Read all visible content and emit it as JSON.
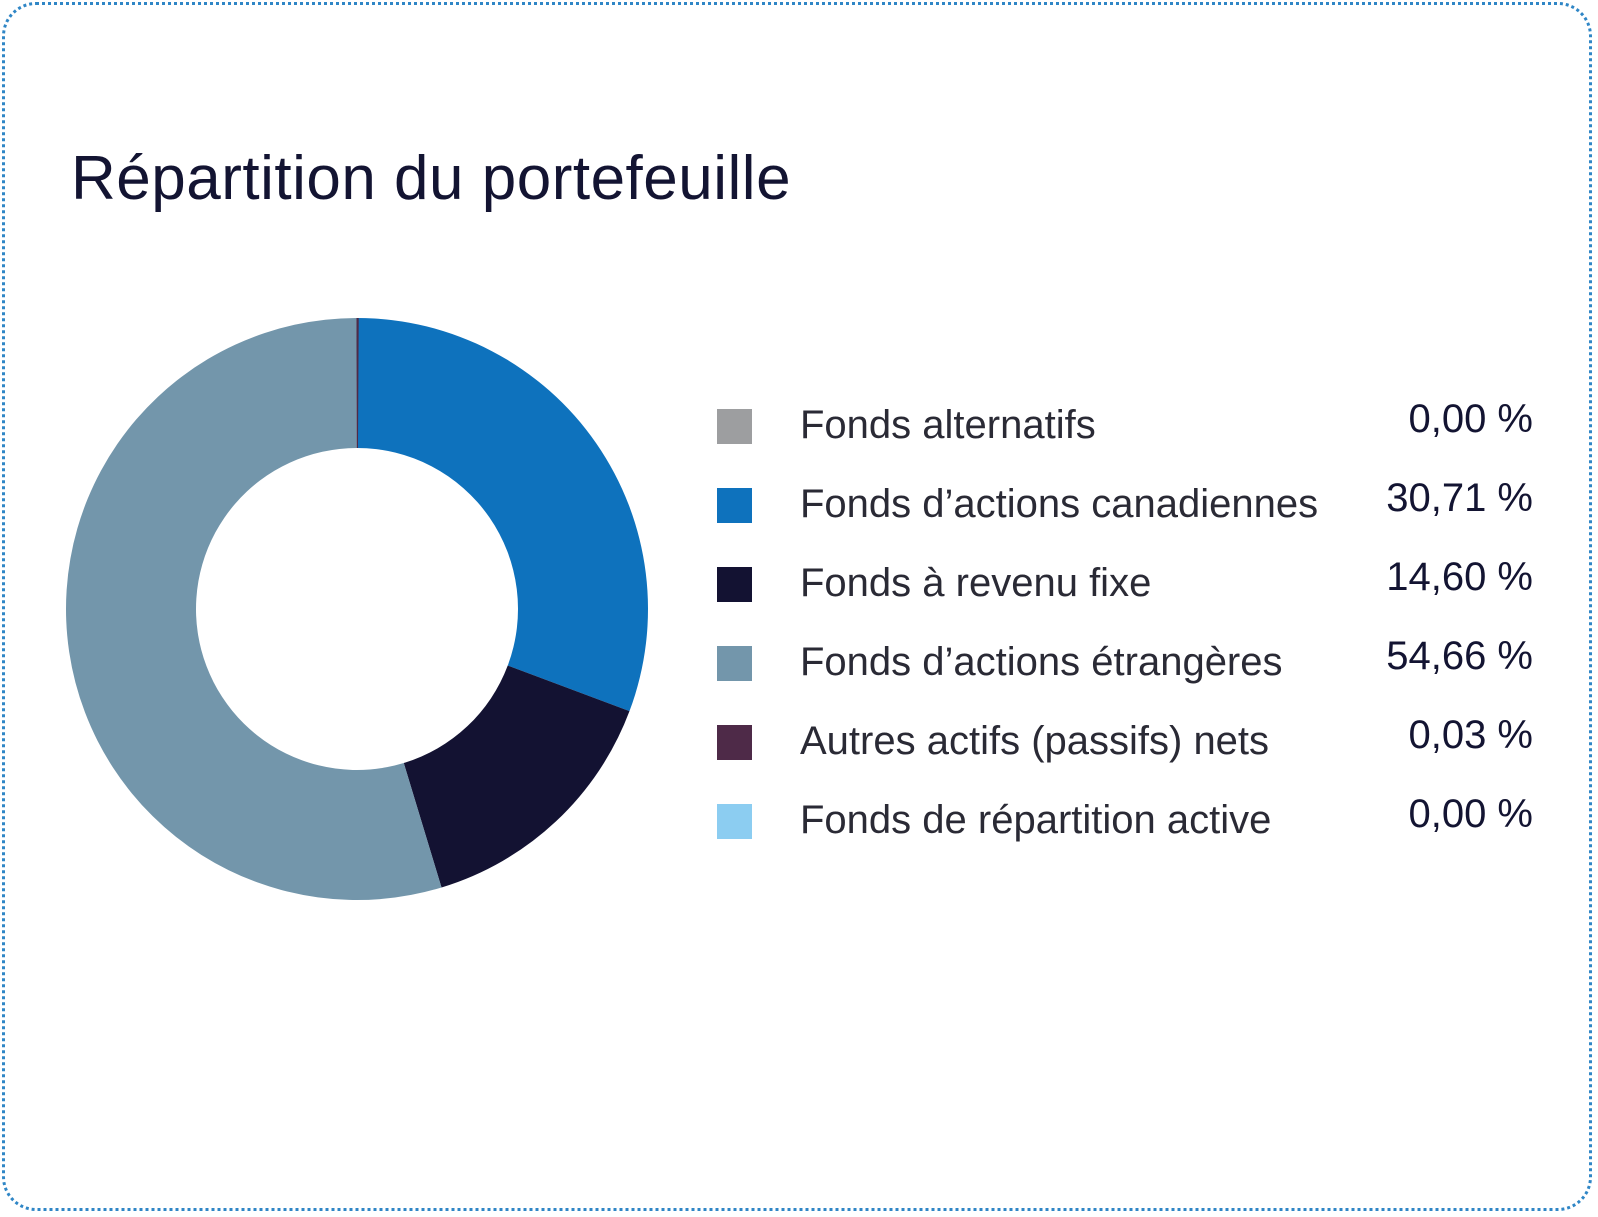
{
  "card": {
    "title": "Répartition du portefeuille"
  },
  "chart_data": {
    "type": "pie",
    "donut": true,
    "title": "Répartition du portefeuille",
    "legend_position": "right",
    "slices": [
      {
        "label": "Fonds alternatifs",
        "value": 0.0,
        "display": "0,00 %",
        "color": "#9d9ea0"
      },
      {
        "label": "Fonds d’actions canadiennes",
        "value": 30.71,
        "display": "30,71 %",
        "color": "#0e72bd"
      },
      {
        "label": "Fonds à revenu fixe",
        "value": 14.6,
        "display": "14,60 %",
        "color": "#131232"
      },
      {
        "label": "Fonds d’actions étrangères",
        "value": 54.66,
        "display": "54,66 %",
        "color": "#7396ab"
      },
      {
        "label": "Autres actifs (passifs) nets",
        "value": 0.03,
        "display": "0,03 %",
        "color": "#4e2a48"
      },
      {
        "label": "Fonds de répartition active",
        "value": 0.0,
        "display": "0,00 %",
        "color": "#8ccdf1"
      }
    ]
  }
}
